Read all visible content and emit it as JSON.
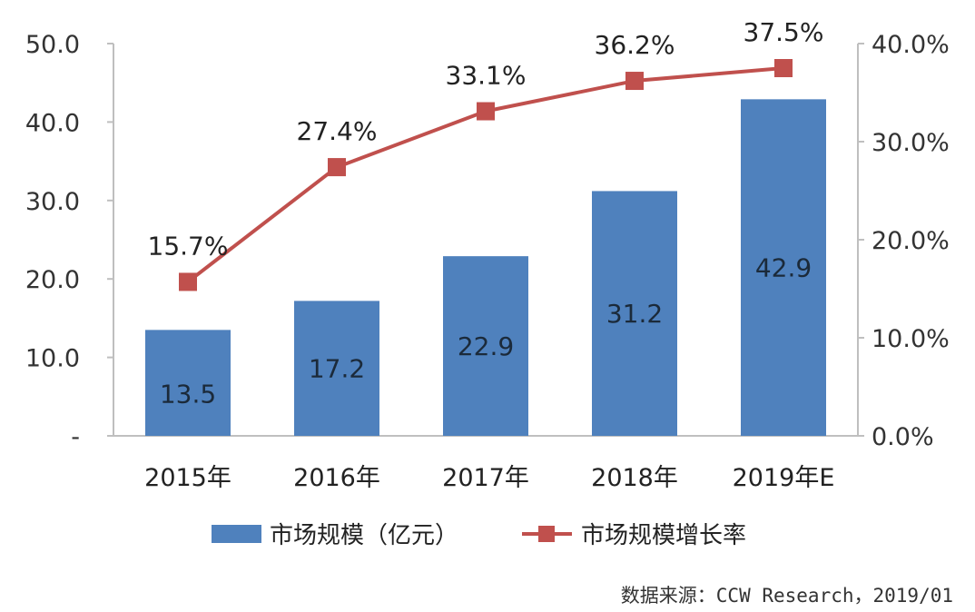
{
  "chart_data": {
    "type": "bar+line",
    "categories": [
      "2015年",
      "2016年",
      "2017年",
      "2018年",
      "2019年E"
    ],
    "series": [
      {
        "name": "市场规模（亿元）",
        "kind": "bar",
        "axis": "left",
        "values": [
          13.5,
          17.2,
          22.9,
          31.2,
          42.9
        ],
        "labels": [
          "13.5",
          "17.2",
          "22.9",
          "31.2",
          "42.9"
        ],
        "color": "#4f81bd"
      },
      {
        "name": "市场规模增长率",
        "kind": "line",
        "axis": "right",
        "values": [
          15.7,
          27.4,
          33.1,
          36.2,
          37.5
        ],
        "labels": [
          "15.7%",
          "27.4%",
          "33.1%",
          "36.2%",
          "37.5%"
        ],
        "color": "#c0504d"
      }
    ],
    "left_axis": {
      "range": [
        0,
        50
      ],
      "ticks": [
        0,
        10,
        20,
        30,
        40,
        50
      ],
      "tick_labels": [
        "-",
        "10.0",
        "20.0",
        "30.0",
        "40.0",
        "50.0"
      ]
    },
    "right_axis": {
      "range": [
        0,
        40
      ],
      "ticks": [
        0,
        10,
        20,
        30,
        40
      ],
      "tick_labels": [
        "0.0%",
        "10.0%",
        "20.0%",
        "30.0%",
        "40.0%"
      ]
    },
    "grid": false,
    "legend_position": "bottom",
    "source": "数据来源：CCW Research，2019/01"
  }
}
